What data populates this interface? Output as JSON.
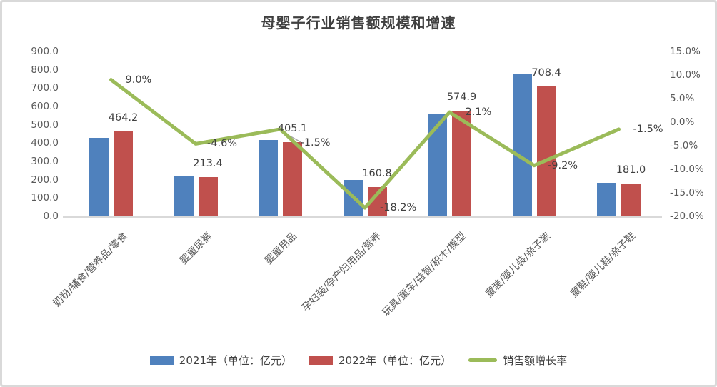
{
  "title": "母婴子行业销售额规模和增速",
  "colors": {
    "bar_2021": "#4F81BD",
    "bar_2022": "#C0504D",
    "growth_line": "#9BBB59",
    "leader_line": "#A6A6A6",
    "axis_text": "#595959",
    "label_text": "#404040",
    "title_text": "#404040",
    "axis_line": "#D9D9D9",
    "frame_border": "#D9D9D9",
    "background": "#FFFFFF"
  },
  "legend": [
    {
      "label": "2021年（单位：亿元）",
      "swatch": "bar_2021",
      "type": "bar"
    },
    {
      "label": "2022年（单位：亿元）",
      "swatch": "bar_2022",
      "type": "bar"
    },
    {
      "label": "销售额增长率",
      "swatch": "growth_line",
      "type": "line"
    }
  ],
  "chart_data": {
    "type": "bar+line combo",
    "title": "母婴子行业销售额规模和增速",
    "categories": [
      "奶粉/辅食/营养品/零食",
      "婴童尿裤",
      "婴童用品",
      "孕妇装/孕产妇用品/营养",
      "玩具/童车/益智/积木/模型",
      "童装/婴儿装/亲子装",
      "童鞋/婴儿鞋/亲子鞋"
    ],
    "left_axis": {
      "min": 0,
      "max": 900,
      "step": 100,
      "labels": [
        "900.0",
        "800.0",
        "700.0",
        "600.0",
        "500.0",
        "400.0",
        "300.0",
        "200.0",
        "100.0",
        "0.0"
      ]
    },
    "right_axis": {
      "min": -20,
      "max": 15,
      "step": 5,
      "labels": [
        "15.0%",
        "10.0%",
        "5.0%",
        "0.0%",
        "-5.0%",
        "-10.0%",
        "-15.0%",
        "-20.0%"
      ]
    },
    "series": [
      {
        "name": "2021年（单位：亿元）",
        "key": "2021",
        "type": "bar",
        "axis": "left",
        "color": "#4F81BD",
        "values": [
          429,
          221,
          415,
          200,
          560,
          779,
          183
        ]
      },
      {
        "name": "2022年（单位：亿元）",
        "key": "2022",
        "type": "bar",
        "axis": "left",
        "color": "#C0504D",
        "values": [
          464.2,
          213.4,
          405.1,
          160.8,
          574.9,
          708.4,
          181.0
        ],
        "labels": [
          "464.2",
          "213.4",
          "405.1",
          "160.8",
          "574.9",
          "708.4",
          "181.0"
        ]
      },
      {
        "name": "销售额增长率",
        "key": "growth",
        "type": "line",
        "axis": "right",
        "color": "#9BBB59",
        "values": [
          9.0,
          -4.6,
          -1.5,
          -18.2,
          2.1,
          -9.2,
          -1.5
        ],
        "labels": [
          "9.0%",
          "-4.6%",
          "-1.5%",
          "-18.2%",
          "2.1%",
          "-9.2%",
          "-1.5%"
        ]
      }
    ],
    "legend_position": "bottom",
    "gridlines": false
  }
}
